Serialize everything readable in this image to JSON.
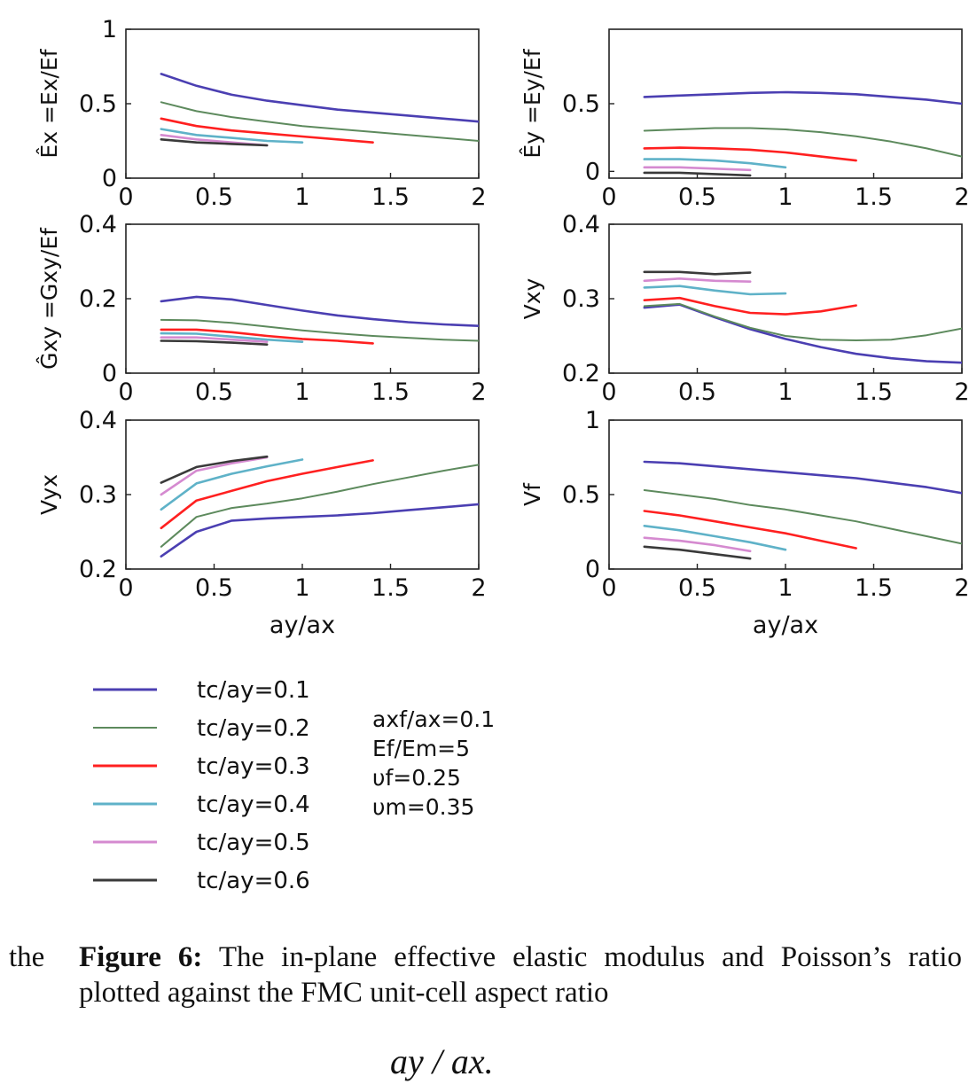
{
  "chart_data": [
    {
      "type": "line",
      "ylabel": "Êx =Ex/Ef",
      "xlabel": "",
      "xlim": [
        0,
        2
      ],
      "ylim": [
        0,
        1
      ],
      "xticks": [
        "0",
        "0.5",
        "1",
        "1.5",
        "2"
      ],
      "yticks": [
        {
          "v": 0,
          "t": "0"
        },
        {
          "v": 0.5,
          "t": "0.5"
        },
        {
          "v": 1,
          "t": "1"
        }
      ],
      "series": [
        {
          "name": "tc/ay=0.1",
          "x": [
            0.2,
            0.4,
            0.6,
            0.8,
            1.0,
            1.2,
            1.4,
            1.6,
            1.8,
            2.0
          ],
          "y": [
            0.7,
            0.62,
            0.56,
            0.52,
            0.49,
            0.46,
            0.44,
            0.42,
            0.4,
            0.38
          ]
        },
        {
          "name": "tc/ay=0.2",
          "x": [
            0.2,
            0.4,
            0.6,
            0.8,
            1.0,
            1.2,
            1.4,
            1.6,
            1.8,
            2.0
          ],
          "y": [
            0.51,
            0.45,
            0.41,
            0.38,
            0.35,
            0.33,
            0.31,
            0.29,
            0.27,
            0.25
          ]
        },
        {
          "name": "tc/ay=0.3",
          "x": [
            0.2,
            0.4,
            0.6,
            0.8,
            1.0,
            1.2,
            1.4
          ],
          "y": [
            0.4,
            0.35,
            0.32,
            0.3,
            0.28,
            0.26,
            0.24
          ]
        },
        {
          "name": "tc/ay=0.4",
          "x": [
            0.2,
            0.4,
            0.6,
            0.8,
            1.0
          ],
          "y": [
            0.33,
            0.29,
            0.27,
            0.25,
            0.24
          ]
        },
        {
          "name": "tc/ay=0.5",
          "x": [
            0.2,
            0.4,
            0.6,
            0.8
          ],
          "y": [
            0.29,
            0.26,
            0.24,
            0.22
          ]
        },
        {
          "name": "tc/ay=0.6",
          "x": [
            0.2,
            0.4,
            0.6,
            0.8
          ],
          "y": [
            0.26,
            0.24,
            0.23,
            0.22
          ]
        }
      ]
    },
    {
      "type": "line",
      "ylabel": "Êy =Ey/Ef",
      "xlabel": "",
      "xlim": [
        0,
        2
      ],
      "ylim": [
        -0.05,
        1.05
      ],
      "xticks": [
        "0",
        "0.5",
        "1",
        "1.5",
        "2"
      ],
      "yticks": [
        {
          "v": 0,
          "t": "0"
        },
        {
          "v": 0.5,
          "t": "0.5"
        }
      ],
      "series": [
        {
          "name": "tc/ay=0.1",
          "x": [
            0.2,
            0.4,
            0.6,
            0.8,
            1.0,
            1.2,
            1.4,
            1.6,
            1.8,
            2.0
          ],
          "y": [
            0.55,
            0.56,
            0.57,
            0.58,
            0.585,
            0.58,
            0.57,
            0.55,
            0.53,
            0.5
          ]
        },
        {
          "name": "tc/ay=0.2",
          "x": [
            0.2,
            0.4,
            0.6,
            0.8,
            1.0,
            1.2,
            1.4,
            1.6,
            1.8,
            2.0
          ],
          "y": [
            0.3,
            0.31,
            0.32,
            0.32,
            0.31,
            0.29,
            0.26,
            0.22,
            0.17,
            0.11
          ]
        },
        {
          "name": "tc/ay=0.3",
          "x": [
            0.2,
            0.4,
            0.6,
            0.8,
            1.0,
            1.2,
            1.4
          ],
          "y": [
            0.17,
            0.175,
            0.17,
            0.16,
            0.14,
            0.11,
            0.08
          ]
        },
        {
          "name": "tc/ay=0.4",
          "x": [
            0.2,
            0.4,
            0.6,
            0.8,
            1.0
          ],
          "y": [
            0.09,
            0.09,
            0.08,
            0.06,
            0.03
          ]
        },
        {
          "name": "tc/ay=0.5",
          "x": [
            0.2,
            0.4,
            0.6,
            0.8
          ],
          "y": [
            0.03,
            0.03,
            0.02,
            0.01
          ]
        },
        {
          "name": "tc/ay=0.6",
          "x": [
            0.2,
            0.4,
            0.6,
            0.8
          ],
          "y": [
            -0.01,
            -0.01,
            -0.02,
            -0.03
          ]
        }
      ]
    },
    {
      "type": "line",
      "ylabel": "Ĝxy =Gxy/Ef",
      "xlabel": "",
      "xlim": [
        0,
        2
      ],
      "ylim": [
        0,
        0.4
      ],
      "xticks": [
        "0",
        "0.5",
        "1",
        "1.5",
        "2"
      ],
      "yticks": [
        {
          "v": 0,
          "t": "0"
        },
        {
          "v": 0.2,
          "t": "0.2"
        },
        {
          "v": 0.4,
          "t": "0.4"
        }
      ],
      "series": [
        {
          "name": "tc/ay=0.1",
          "x": [
            0.2,
            0.4,
            0.6,
            0.8,
            1.0,
            1.2,
            1.4,
            1.6,
            1.8,
            2.0
          ],
          "y": [
            0.193,
            0.205,
            0.198,
            0.183,
            0.168,
            0.155,
            0.145,
            0.137,
            0.131,
            0.127
          ]
        },
        {
          "name": "tc/ay=0.2",
          "x": [
            0.2,
            0.4,
            0.6,
            0.8,
            1.0,
            1.2,
            1.4,
            1.6,
            1.8,
            2.0
          ],
          "y": [
            0.143,
            0.142,
            0.135,
            0.125,
            0.115,
            0.107,
            0.1,
            0.095,
            0.09,
            0.087
          ]
        },
        {
          "name": "tc/ay=0.3",
          "x": [
            0.2,
            0.4,
            0.6,
            0.8,
            1.0,
            1.2,
            1.4
          ],
          "y": [
            0.117,
            0.117,
            0.11,
            0.1,
            0.092,
            0.087,
            0.08
          ]
        },
        {
          "name": "tc/ay=0.4",
          "x": [
            0.2,
            0.4,
            0.6,
            0.8,
            1.0
          ],
          "y": [
            0.107,
            0.106,
            0.098,
            0.09,
            0.084
          ]
        },
        {
          "name": "tc/ay=0.5",
          "x": [
            0.2,
            0.4,
            0.6,
            0.8
          ],
          "y": [
            0.096,
            0.096,
            0.09,
            0.084
          ]
        },
        {
          "name": "tc/ay=0.6",
          "x": [
            0.2,
            0.4,
            0.6,
            0.8
          ],
          "y": [
            0.087,
            0.086,
            0.082,
            0.077
          ]
        }
      ]
    },
    {
      "type": "line",
      "ylabel": "Vxy",
      "xlabel": "",
      "xlim": [
        0,
        2
      ],
      "ylim": [
        0.2,
        0.4
      ],
      "xticks": [
        "0",
        "0.5",
        "1",
        "1.5",
        "2"
      ],
      "yticks": [
        {
          "v": 0.2,
          "t": "0.2"
        },
        {
          "v": 0.3,
          "t": "0.3"
        },
        {
          "v": 0.4,
          "t": "0.4"
        }
      ],
      "series": [
        {
          "name": "tc/ay=0.1",
          "x": [
            0.2,
            0.4,
            0.6,
            0.8,
            1.0,
            1.2,
            1.4,
            1.6,
            1.8,
            2.0
          ],
          "y": [
            0.288,
            0.292,
            0.275,
            0.259,
            0.246,
            0.235,
            0.226,
            0.22,
            0.216,
            0.214
          ]
        },
        {
          "name": "tc/ay=0.2",
          "x": [
            0.2,
            0.4,
            0.6,
            0.8,
            1.0,
            1.2,
            1.4,
            1.6,
            1.8,
            2.0
          ],
          "y": [
            0.29,
            0.293,
            0.276,
            0.261,
            0.25,
            0.245,
            0.244,
            0.245,
            0.251,
            0.26
          ]
        },
        {
          "name": "tc/ay=0.3",
          "x": [
            0.2,
            0.4,
            0.6,
            0.8,
            1.0,
            1.2,
            1.4
          ],
          "y": [
            0.298,
            0.301,
            0.29,
            0.281,
            0.279,
            0.283,
            0.291
          ]
        },
        {
          "name": "tc/ay=0.4",
          "x": [
            0.2,
            0.4,
            0.6,
            0.8,
            1.0
          ],
          "y": [
            0.315,
            0.317,
            0.311,
            0.306,
            0.307
          ]
        },
        {
          "name": "tc/ay=0.5",
          "x": [
            0.2,
            0.4,
            0.6,
            0.8
          ],
          "y": [
            0.324,
            0.327,
            0.324,
            0.323
          ]
        },
        {
          "name": "tc/ay=0.6",
          "x": [
            0.2,
            0.4,
            0.6,
            0.8
          ],
          "y": [
            0.336,
            0.336,
            0.333,
            0.335
          ]
        }
      ]
    },
    {
      "type": "line",
      "ylabel": "Vyx",
      "xlabel": "ay/ax",
      "xlim": [
        0,
        2
      ],
      "ylim": [
        0.2,
        0.4
      ],
      "xticks": [
        "0",
        "0.5",
        "1",
        "1.5",
        "2"
      ],
      "yticks": [
        {
          "v": 0.2,
          "t": "0.2"
        },
        {
          "v": 0.3,
          "t": "0.3"
        },
        {
          "v": 0.4,
          "t": "0.4"
        }
      ],
      "series": [
        {
          "name": "tc/ay=0.1",
          "x": [
            0.2,
            0.4,
            0.6,
            0.8,
            1.0,
            1.2,
            1.4,
            1.6,
            1.8,
            2.0
          ],
          "y": [
            0.217,
            0.25,
            0.265,
            0.268,
            0.27,
            0.272,
            0.275,
            0.279,
            0.283,
            0.287
          ]
        },
        {
          "name": "tc/ay=0.2",
          "x": [
            0.2,
            0.4,
            0.6,
            0.8,
            1.0,
            1.2,
            1.4,
            1.6,
            1.8,
            2.0
          ],
          "y": [
            0.23,
            0.27,
            0.282,
            0.288,
            0.295,
            0.304,
            0.314,
            0.323,
            0.332,
            0.34
          ]
        },
        {
          "name": "tc/ay=0.3",
          "x": [
            0.2,
            0.4,
            0.6,
            0.8,
            1.0,
            1.2,
            1.4
          ],
          "y": [
            0.255,
            0.292,
            0.305,
            0.318,
            0.328,
            0.337,
            0.346
          ]
        },
        {
          "name": "tc/ay=0.4",
          "x": [
            0.2,
            0.4,
            0.6,
            0.8,
            1.0
          ],
          "y": [
            0.28,
            0.315,
            0.328,
            0.338,
            0.347
          ]
        },
        {
          "name": "tc/ay=0.5",
          "x": [
            0.2,
            0.4,
            0.6,
            0.8
          ],
          "y": [
            0.3,
            0.332,
            0.342,
            0.35
          ]
        },
        {
          "name": "tc/ay=0.6",
          "x": [
            0.2,
            0.4,
            0.6,
            0.8
          ],
          "y": [
            0.316,
            0.337,
            0.345,
            0.351
          ]
        }
      ]
    },
    {
      "type": "line",
      "ylabel": "Vf",
      "xlabel": "ay/ax",
      "xlim": [
        0,
        2
      ],
      "ylim": [
        0,
        1
      ],
      "xticks": [
        "0",
        "0.5",
        "1",
        "1.5",
        "2"
      ],
      "yticks": [
        {
          "v": 0,
          "t": "0"
        },
        {
          "v": 0.5,
          "t": "0.5"
        },
        {
          "v": 1,
          "t": "1"
        }
      ],
      "series": [
        {
          "name": "tc/ay=0.1",
          "x": [
            0.2,
            0.4,
            0.6,
            0.8,
            1.0,
            1.2,
            1.4,
            1.6,
            1.8,
            2.0
          ],
          "y": [
            0.72,
            0.71,
            0.69,
            0.67,
            0.65,
            0.63,
            0.61,
            0.58,
            0.55,
            0.51
          ]
        },
        {
          "name": "tc/ay=0.2",
          "x": [
            0.2,
            0.4,
            0.6,
            0.8,
            1.0,
            1.2,
            1.4,
            1.6,
            1.8,
            2.0
          ],
          "y": [
            0.53,
            0.5,
            0.47,
            0.43,
            0.4,
            0.36,
            0.32,
            0.27,
            0.22,
            0.17
          ]
        },
        {
          "name": "tc/ay=0.3",
          "x": [
            0.2,
            0.4,
            0.6,
            0.8,
            1.0,
            1.2,
            1.4
          ],
          "y": [
            0.39,
            0.36,
            0.32,
            0.28,
            0.24,
            0.19,
            0.14
          ]
        },
        {
          "name": "tc/ay=0.4",
          "x": [
            0.2,
            0.4,
            0.6,
            0.8,
            1.0
          ],
          "y": [
            0.29,
            0.26,
            0.22,
            0.18,
            0.13
          ]
        },
        {
          "name": "tc/ay=0.5",
          "x": [
            0.2,
            0.4,
            0.6,
            0.8
          ],
          "y": [
            0.21,
            0.19,
            0.16,
            0.12
          ]
        },
        {
          "name": "tc/ay=0.6",
          "x": [
            0.2,
            0.4,
            0.6,
            0.8
          ],
          "y": [
            0.15,
            0.13,
            0.1,
            0.07
          ]
        }
      ]
    }
  ],
  "series_colors": [
    "#4b3fb2",
    "#5d8a5d",
    "#ff2020",
    "#5fb2c8",
    "#d58ad0",
    "#3a3a3a"
  ],
  "legend": {
    "entries": [
      "tc/ay=0.1",
      "tc/ay=0.2",
      "tc/ay=0.3",
      "tc/ay=0.4",
      "tc/ay=0.5",
      "tc/ay=0.6"
    ],
    "parameters": [
      "axf/ax=0.1",
      "Ef/Em=5",
      "υf=0.25",
      "υm=0.35"
    ]
  },
  "caption": {
    "lead": "the",
    "label": "Figure 6:",
    "text": "The in-plane effective elastic modulus and Poisson’s ratio plotted against the FMC unit-cell aspect ratio",
    "formula": "ay / ax."
  }
}
